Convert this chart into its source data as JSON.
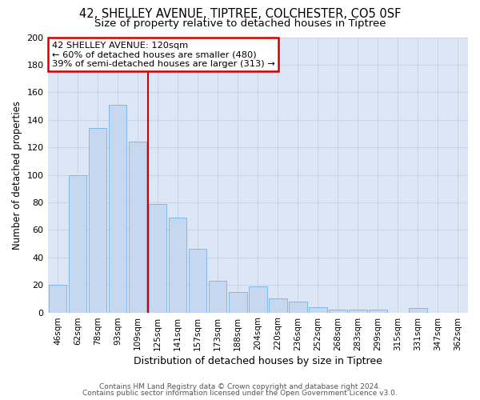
{
  "title": "42, SHELLEY AVENUE, TIPTREE, COLCHESTER, CO5 0SF",
  "subtitle": "Size of property relative to detached houses in Tiptree",
  "xlabel": "Distribution of detached houses by size in Tiptree",
  "ylabel": "Number of detached properties",
  "bar_labels": [
    "46sqm",
    "62sqm",
    "78sqm",
    "93sqm",
    "109sqm",
    "125sqm",
    "141sqm",
    "157sqm",
    "173sqm",
    "188sqm",
    "204sqm",
    "220sqm",
    "236sqm",
    "252sqm",
    "268sqm",
    "283sqm",
    "299sqm",
    "315sqm",
    "331sqm",
    "347sqm",
    "362sqm"
  ],
  "bar_heights": [
    20,
    100,
    134,
    151,
    124,
    79,
    69,
    46,
    23,
    15,
    19,
    10,
    8,
    4,
    2,
    2,
    2,
    0,
    3,
    0,
    0
  ],
  "bar_color": "#c5d8f0",
  "bar_edgecolor": "#7fb8e8",
  "bar_linewidth": 0.7,
  "vline_x": 4.5,
  "vline_color": "#cc0000",
  "vline_linewidth": 1.5,
  "annotation_title": "42 SHELLEY AVENUE: 120sqm",
  "annotation_line1": "← 60% of detached houses are smaller (480)",
  "annotation_line2": "39% of semi-detached houses are larger (313) →",
  "annotation_box_color": "#cc0000",
  "annotation_bg": "#ffffff",
  "ylim": [
    0,
    200
  ],
  "yticks": [
    0,
    20,
    40,
    60,
    80,
    100,
    120,
    140,
    160,
    180,
    200
  ],
  "grid_color": "#c8d4e8",
  "bg_color": "#dde6f4",
  "footer1": "Contains HM Land Registry data © Crown copyright and database right 2024.",
  "footer2": "Contains public sector information licensed under the Open Government Licence v3.0.",
  "title_fontsize": 10.5,
  "subtitle_fontsize": 9.5,
  "title_fontweight": "normal"
}
